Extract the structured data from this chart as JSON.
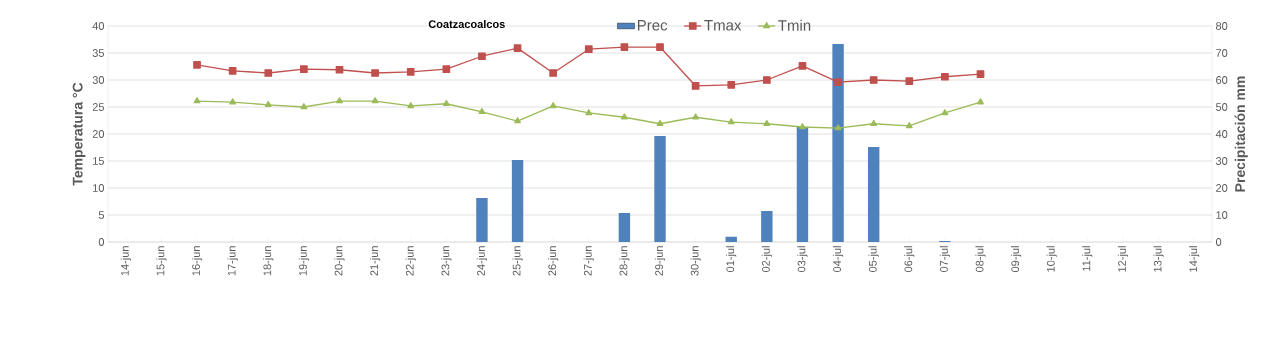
{
  "chart_data": {
    "type": "bar",
    "title": "Coatzacoalcos",
    "ylabel": "Temperatura °C",
    "y2label": "Precipitación mm",
    "categories": [
      "14-jun",
      "15-jun",
      "16-jun",
      "17-jun",
      "18-jun",
      "19-jun",
      "20-jun",
      "21-jun",
      "22-jun",
      "23-jun",
      "24-jun",
      "25-jun",
      "26-jun",
      "27-jun",
      "28-jun",
      "29-jun",
      "30-jun",
      "01-jul",
      "02-jul",
      "03-jul",
      "04-jul",
      "05-jul",
      "06-jul",
      "07-jul",
      "08-jul",
      "09-jul",
      "10-jul",
      "11-jul",
      "12-jul",
      "13-jul",
      "14-jul"
    ],
    "series": [
      {
        "name": "Prec",
        "axis": "y2",
        "color": "#4f81bd",
        "values": [
          null,
          null,
          null,
          null,
          null,
          null,
          null,
          null,
          null,
          null,
          16.3,
          30.4,
          null,
          null,
          10.7,
          39.3,
          null,
          1.9,
          11.5,
          42.6,
          73.3,
          35.2,
          null,
          0.4,
          null,
          null,
          null,
          null,
          null,
          null,
          null
        ]
      },
      {
        "name": "Tmax",
        "type": "line",
        "marker": "square",
        "color": "#c0504d",
        "values": [
          null,
          null,
          32.8,
          31.7,
          31.3,
          32.0,
          31.9,
          31.3,
          31.5,
          32.0,
          34.4,
          35.9,
          31.3,
          35.7,
          36.1,
          36.1,
          28.9,
          29.1,
          30.0,
          32.6,
          29.6,
          30.0,
          29.8,
          30.6,
          31.1,
          null,
          null,
          null,
          null,
          null,
          null
        ]
      },
      {
        "name": "Tmin",
        "type": "line",
        "marker": "triangle",
        "color": "#9bbb59",
        "values": [
          null,
          null,
          26.1,
          25.9,
          25.4,
          25.0,
          26.1,
          26.1,
          25.2,
          25.6,
          24.1,
          22.4,
          25.2,
          23.9,
          23.1,
          21.9,
          23.1,
          22.2,
          21.9,
          21.3,
          21.1,
          21.9,
          21.5,
          23.9,
          25.9,
          null,
          null,
          null,
          null,
          null,
          null
        ]
      }
    ],
    "ylim": [
      0,
      40
    ],
    "yticks": [
      0,
      5,
      10,
      15,
      20,
      25,
      30,
      35,
      40
    ],
    "y2lim": [
      0,
      80
    ],
    "y2ticks": [
      0,
      10,
      20,
      30,
      40,
      50,
      60,
      70,
      80
    ],
    "grid": "y",
    "legend": "top"
  }
}
